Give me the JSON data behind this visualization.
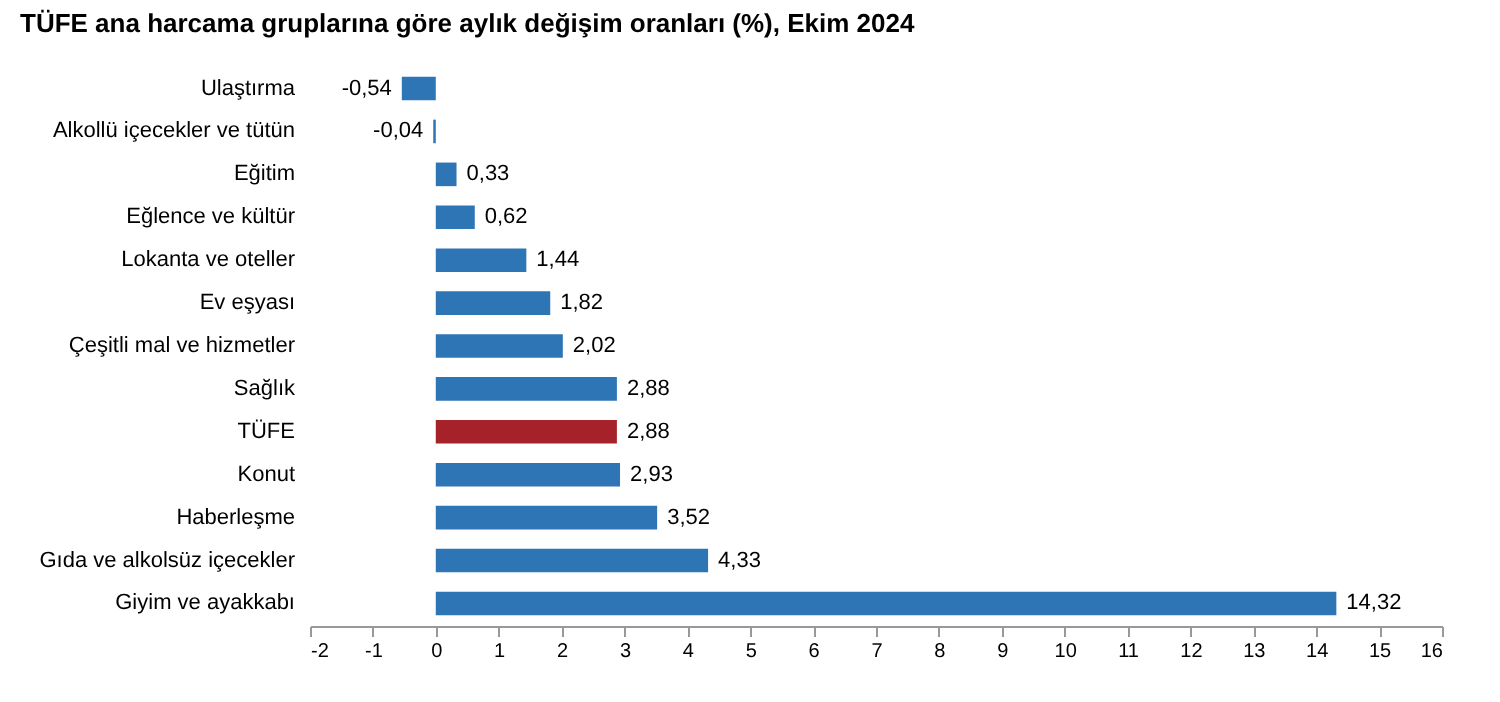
{
  "chart_data": {
    "type": "bar",
    "orientation": "horizontal",
    "title": "TÜFE ana harcama gruplarına göre aylık değişim oranları (%), Ekim 2024",
    "categories": [
      "Ulaştırma",
      "Alkollü içecekler ve tütün",
      "Eğitim",
      "Eğlence ve kültür",
      "Lokanta ve oteller",
      "Ev eşyası",
      "Çeşitli mal ve hizmetler",
      "Sağlık",
      "TÜFE",
      "Konut",
      "Haberleşme",
      "Gıda ve alkolsüz içecekler",
      "Giyim ve ayakkabı"
    ],
    "values": [
      -0.54,
      -0.04,
      0.33,
      0.62,
      1.44,
      1.82,
      2.02,
      2.88,
      2.88,
      2.93,
      3.52,
      4.33,
      14.32
    ],
    "value_labels": [
      "-0,54",
      "-0,04",
      "0,33",
      "0,62",
      "1,44",
      "1,82",
      "2,02",
      "2,88",
      "2,88",
      "2,93",
      "3,52",
      "4,33",
      "14,32"
    ],
    "colors": [
      "#2e75b6",
      "#2e75b6",
      "#2e75b6",
      "#2e75b6",
      "#2e75b6",
      "#2e75b6",
      "#2e75b6",
      "#2e75b6",
      "#a5222a",
      "#2e75b6",
      "#2e75b6",
      "#2e75b6",
      "#2e75b6"
    ],
    "xlim": [
      -2,
      16
    ],
    "xticks": [
      -2,
      -1,
      0,
      1,
      2,
      3,
      4,
      5,
      6,
      7,
      8,
      9,
      10,
      11,
      12,
      13,
      14,
      15,
      16
    ],
    "grid": false
  }
}
